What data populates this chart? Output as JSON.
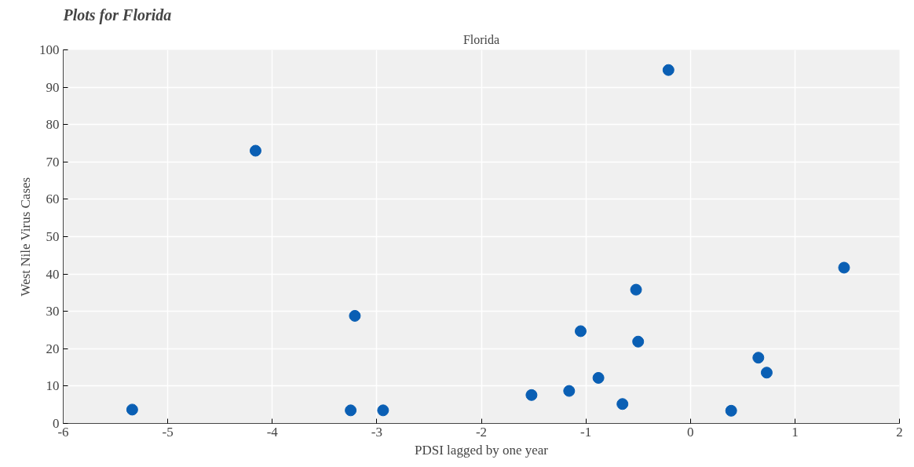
{
  "chart_data": {
    "type": "scatter",
    "title": "Florida",
    "xlabel": "PDSI lagged by one year",
    "ylabel": "West Nile Virus Cases",
    "annotations": [
      "Plots for Florida"
    ],
    "x": [
      -5.34,
      -4.16,
      -3.21,
      -3.25,
      -2.94,
      -1.52,
      -1.16,
      -1.05,
      -0.88,
      -0.65,
      -0.52,
      -0.5,
      -0.21,
      0.39,
      0.65,
      0.73,
      1.47
    ],
    "series": [
      {
        "color": "#0a5fb4",
        "values": [
          3.7,
          73.0,
          28.8,
          3.5,
          3.5,
          7.6,
          8.7,
          24.7,
          12.2,
          5.2,
          35.8,
          21.9,
          94.6,
          3.4,
          17.6,
          13.6,
          41.7
        ]
      }
    ],
    "xlim": [
      -6,
      2
    ],
    "xticks": [
      -6,
      -5,
      -4,
      -3,
      -2,
      -1,
      0,
      1,
      2
    ],
    "ylim": [
      0,
      100
    ],
    "yticks": [
      0,
      10,
      20,
      30,
      40,
      50,
      60,
      70,
      80,
      90,
      100
    ],
    "grid": true,
    "marker": "circle"
  }
}
